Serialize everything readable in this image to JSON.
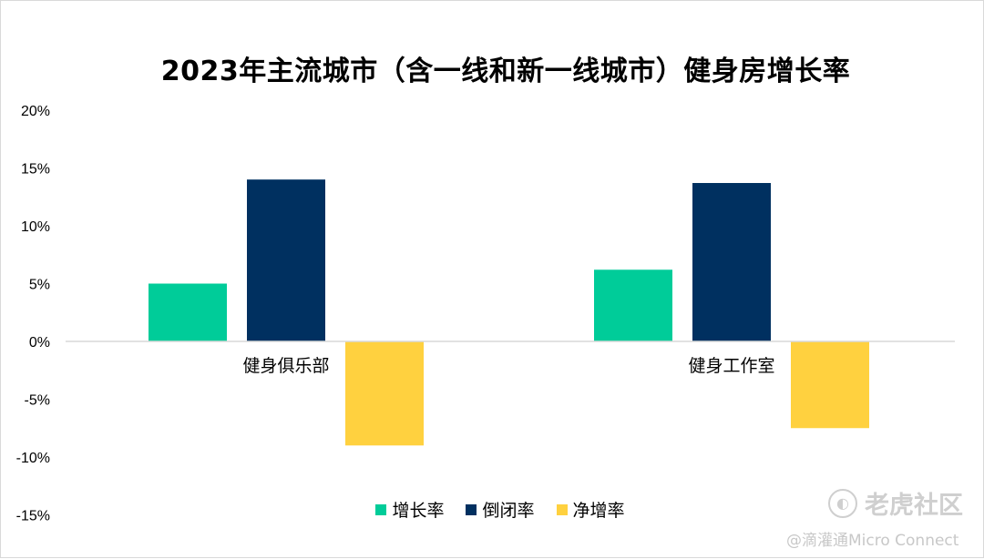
{
  "chart_data": {
    "type": "bar",
    "title": "2023年主流城市（含一线和新一线城市）健身房增长率",
    "categories": [
      "健身俱乐部",
      "健身工作室"
    ],
    "series": [
      {
        "name": "增长率",
        "color": "#00cc99",
        "values": [
          5.0,
          6.2
        ]
      },
      {
        "name": "倒闭率",
        "color": "#003060",
        "values": [
          14.0,
          13.7
        ]
      },
      {
        "name": "净增率",
        "color": "#ffd13f",
        "values": [
          -9.0,
          -7.5
        ]
      }
    ],
    "ylim": [
      -15,
      20
    ],
    "yticks": [
      20,
      15,
      10,
      5,
      0,
      -5,
      -10,
      -15
    ],
    "ytick_labels": [
      "20%",
      "15%",
      "10%",
      "5%",
      "0%",
      "-5%",
      "-10%",
      "-15%"
    ],
    "grid": false,
    "legend_position": "bottom"
  },
  "watermark": {
    "logo_text": "老虎社区",
    "logo_icon": "tiger-community-icon",
    "source_text": "@滴灌通Micro Connect"
  }
}
